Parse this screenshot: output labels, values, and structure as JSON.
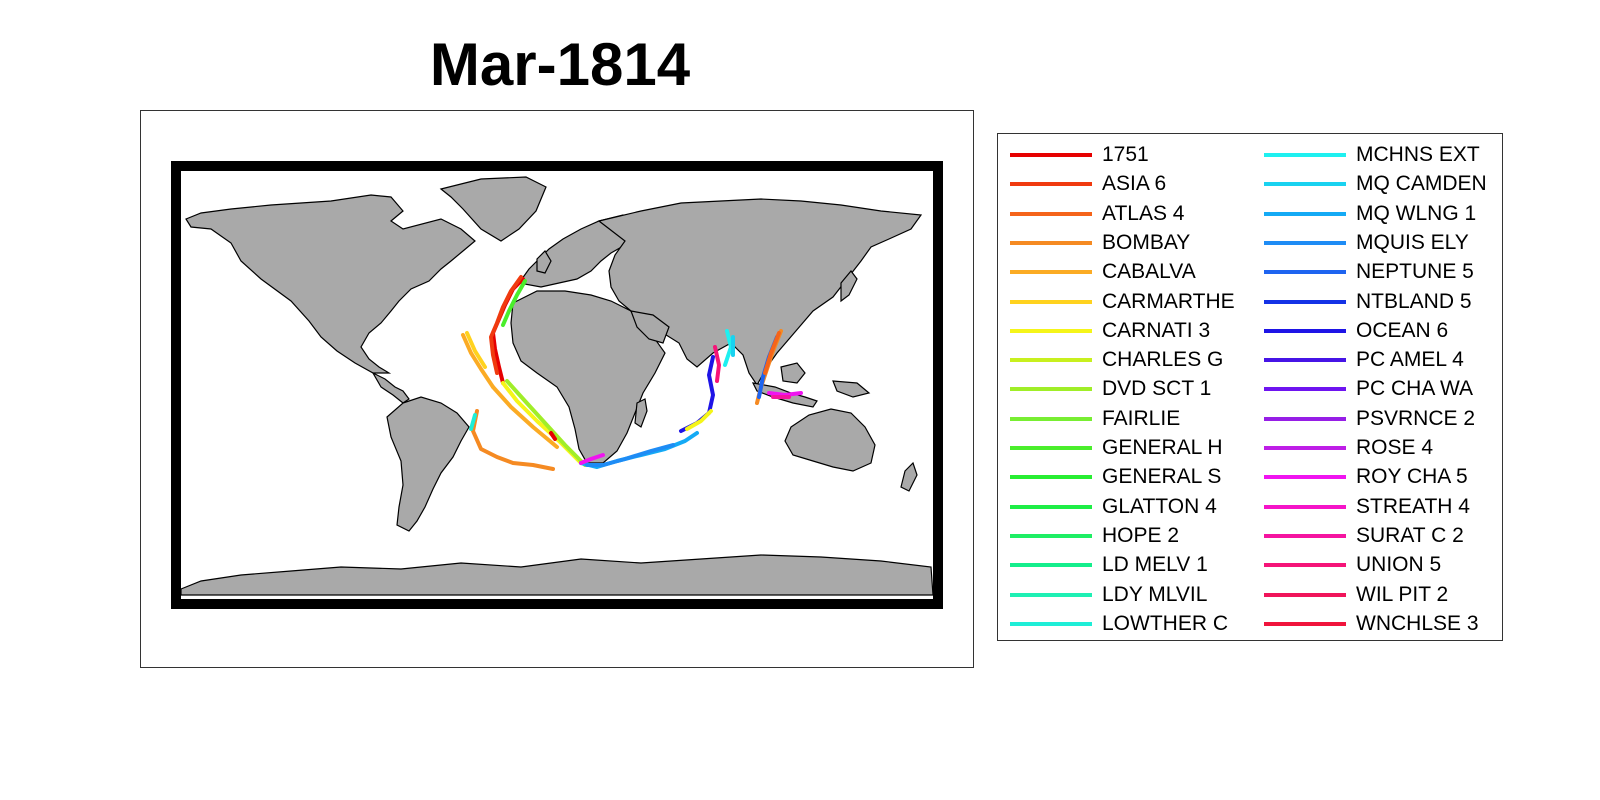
{
  "title": "Mar-1814",
  "map": {
    "land_color": "#a9a9a9",
    "frame_color": "#000000"
  },
  "legend": [
    {
      "label": "1751",
      "color": "#e60000"
    },
    {
      "label": "ASIA 6",
      "color": "#f03a0f"
    },
    {
      "label": "ATLAS 4",
      "color": "#f5641a"
    },
    {
      "label": "BOMBAY",
      "color": "#f58a22"
    },
    {
      "label": "CABALVA",
      "color": "#fbab24"
    },
    {
      "label": "CARMARTHE",
      "color": "#ffd21e"
    },
    {
      "label": "CARNATI 3",
      "color": "#f5f519"
    },
    {
      "label": "CHARLES G",
      "color": "#c8f01e"
    },
    {
      "label": "DVD SCT 1",
      "color": "#a0ee28"
    },
    {
      "label": "FAIRLIE",
      "color": "#78ee32"
    },
    {
      "label": "GENERAL H",
      "color": "#4aee2c"
    },
    {
      "label": "GENERAL S",
      "color": "#28ee32"
    },
    {
      "label": "GLATTON 4",
      "color": "#1eee46"
    },
    {
      "label": "HOPE 2",
      "color": "#1eee64"
    },
    {
      "label": "LD MELV 1",
      "color": "#14ee8c"
    },
    {
      "label": "LDY MLVIL",
      "color": "#1ef0b4"
    },
    {
      "label": "LOWTHER C",
      "color": "#1eeed7"
    },
    {
      "label": "MCHNS EXT",
      "color": "#1ef0f0"
    },
    {
      "label": "MQ CAMDEN",
      "color": "#19d2f0"
    },
    {
      "label": "MQ WLNG 1",
      "color": "#14aaf5"
    },
    {
      "label": "MQUIS ELY",
      "color": "#1e8cf5"
    },
    {
      "label": "NEPTUNE 5",
      "color": "#1e64f0"
    },
    {
      "label": "NTBLAND 5",
      "color": "#1432e6"
    },
    {
      "label": "OCEAN 6",
      "color": "#1e14e6"
    },
    {
      "label": "PC AMEL 4",
      "color": "#4614e6"
    },
    {
      "label": "PC CHA WA",
      "color": "#6e14f0"
    },
    {
      "label": "PSVRNCE 2",
      "color": "#961ee6"
    },
    {
      "label": "ROSE 4",
      "color": "#be1ee6"
    },
    {
      "label": "ROY CHA 5",
      "color": "#f014f0"
    },
    {
      "label": "STREATH 4",
      "color": "#f514c8"
    },
    {
      "label": "SURAT C 2",
      "color": "#f514a0"
    },
    {
      "label": "UNION 5",
      "color": "#f51478"
    },
    {
      "label": "WIL PIT 2",
      "color": "#f0145a"
    },
    {
      "label": "WNCHLSE 3",
      "color": "#f0143c"
    }
  ]
}
